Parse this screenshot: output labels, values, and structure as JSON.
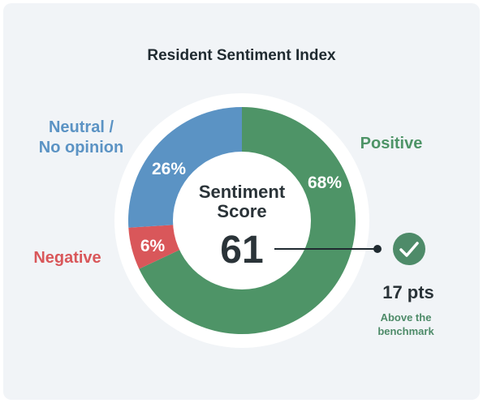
{
  "title": "Resident Sentiment Index",
  "colors": {
    "positive": "#4e9467",
    "neutral": "#5b93c4",
    "negative": "#d9575a",
    "ring_bg": "#ffffff",
    "text": "#2a3338",
    "accent": "#4e8b69"
  },
  "chart_data": {
    "type": "pie",
    "title": "Resident Sentiment Index",
    "slices": [
      {
        "name": "Positive",
        "value": 68,
        "label": "68%"
      },
      {
        "name": "Negative",
        "value": 6,
        "label": "6%"
      },
      {
        "name": "Neutral / No opinion",
        "value": 26,
        "label": "26%"
      }
    ],
    "center": {
      "label_line1": "Sentiment",
      "label_line2": "Score",
      "value": "61"
    }
  },
  "legend_labels": {
    "positive": "Positive",
    "negative": "Negative",
    "neutral_line1": "Neutral /",
    "neutral_line2": "No opinion"
  },
  "benchmark": {
    "icon": "check-circle-icon",
    "delta": "17 pts",
    "caption_line1": "Above the",
    "caption_line2": "benchmark"
  }
}
